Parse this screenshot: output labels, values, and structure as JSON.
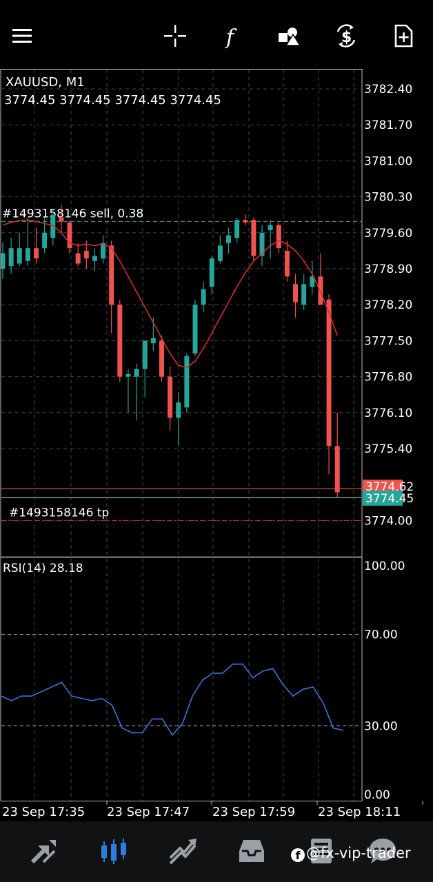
{
  "toolbar": {
    "icons": [
      "menu-icon",
      "crosshair-icon",
      "indicators-icon",
      "objects-icon",
      "trade-icon",
      "new-order-icon"
    ]
  },
  "chart": {
    "symbol_label": "XAUUSD, M1",
    "ohlc_label": "3774.45 3774.45 3774.45 3774.45",
    "order_label": "#1493158146 sell, 0.38",
    "tp_label": "#1493158146 tp",
    "bid_price": "3774.45",
    "ask_price": "3774.62",
    "rsi_label": "RSI(14) 28.18",
    "colors": {
      "bull": "#26a69a",
      "bear": "#ef5350",
      "ma": "#d32f2f",
      "rsi": "#3f74d8",
      "grid": "#3a4a4a"
    }
  },
  "chart_data": [
    {
      "type": "candlestick",
      "title": "XAUUSD, M1",
      "y_ticks": [
        "3782.40",
        "3781.70",
        "3781.00",
        "3780.30",
        "3779.60",
        "3778.90",
        "3778.20",
        "3777.50",
        "3776.80",
        "3776.10",
        "3775.40",
        "3774.00"
      ],
      "ylim": [
        3773.7,
        3782.8
      ],
      "x_ticks": [
        "23 Sep 17:35",
        "23 Sep 17:47",
        "23 Sep 17:59",
        "23 Sep 18:11"
      ],
      "order_line_price": 3779.82,
      "tp_line_price": 3774.0,
      "ask_line_price": 3774.62,
      "bid_line_price": 3774.45,
      "candles": [
        {
          "o": 3778.9,
          "h": 3779.4,
          "l": 3778.7,
          "c": 3779.2
        },
        {
          "o": 3778.95,
          "h": 3779.5,
          "l": 3778.8,
          "c": 3779.3
        },
        {
          "o": 3779.0,
          "h": 3779.6,
          "l": 3778.95,
          "c": 3779.3
        },
        {
          "o": 3779.05,
          "h": 3779.9,
          "l": 3778.95,
          "c": 3779.3
        },
        {
          "o": 3779.3,
          "h": 3779.7,
          "l": 3779.0,
          "c": 3779.1
        },
        {
          "o": 3779.3,
          "h": 3779.9,
          "l": 3779.2,
          "c": 3779.6
        },
        {
          "o": 3779.5,
          "h": 3780.05,
          "l": 3779.35,
          "c": 3779.95
        },
        {
          "o": 3779.9,
          "h": 3780.15,
          "l": 3779.6,
          "c": 3779.82
        },
        {
          "o": 3779.8,
          "h": 3779.85,
          "l": 3779.2,
          "c": 3779.3
        },
        {
          "o": 3779.2,
          "h": 3779.4,
          "l": 3778.95,
          "c": 3779.0
        },
        {
          "o": 3779.25,
          "h": 3779.45,
          "l": 3778.9,
          "c": 3779.1
        },
        {
          "o": 3779.05,
          "h": 3779.3,
          "l": 3778.85,
          "c": 3779.15
        },
        {
          "o": 3779.1,
          "h": 3779.55,
          "l": 3779.0,
          "c": 3779.4
        },
        {
          "o": 3779.35,
          "h": 3779.45,
          "l": 3777.65,
          "c": 3778.2
        },
        {
          "o": 3778.2,
          "h": 3778.3,
          "l": 3776.7,
          "c": 3776.8
        },
        {
          "o": 3776.8,
          "h": 3776.95,
          "l": 3776.1,
          "c": 3776.85
        },
        {
          "o": 3776.8,
          "h": 3777.05,
          "l": 3775.95,
          "c": 3776.95
        },
        {
          "o": 3776.95,
          "h": 3777.5,
          "l": 3776.4,
          "c": 3777.5
        },
        {
          "o": 3777.45,
          "h": 3777.95,
          "l": 3777.3,
          "c": 3777.55
        },
        {
          "o": 3777.5,
          "h": 3777.6,
          "l": 3776.7,
          "c": 3776.8
        },
        {
          "o": 3776.8,
          "h": 3777.0,
          "l": 3775.75,
          "c": 3776.0
        },
        {
          "o": 3776.0,
          "h": 3776.5,
          "l": 3775.45,
          "c": 3776.3
        },
        {
          "o": 3776.2,
          "h": 3777.25,
          "l": 3776.1,
          "c": 3777.2
        },
        {
          "o": 3777.25,
          "h": 3778.3,
          "l": 3777.2,
          "c": 3778.2
        },
        {
          "o": 3778.2,
          "h": 3778.65,
          "l": 3778.05,
          "c": 3778.5
        },
        {
          "o": 3778.55,
          "h": 3779.15,
          "l": 3778.4,
          "c": 3779.1
        },
        {
          "o": 3779.05,
          "h": 3779.55,
          "l": 3779.0,
          "c": 3779.35
        },
        {
          "o": 3779.4,
          "h": 3779.7,
          "l": 3779.2,
          "c": 3779.55
        },
        {
          "o": 3779.5,
          "h": 3779.9,
          "l": 3779.4,
          "c": 3779.85
        },
        {
          "o": 3779.85,
          "h": 3779.95,
          "l": 3779.75,
          "c": 3779.8
        },
        {
          "o": 3779.85,
          "h": 3779.9,
          "l": 3779.05,
          "c": 3779.15
        },
        {
          "o": 3779.15,
          "h": 3779.75,
          "l": 3778.95,
          "c": 3779.6
        },
        {
          "o": 3779.65,
          "h": 3779.85,
          "l": 3779.1,
          "c": 3779.75
        },
        {
          "o": 3779.75,
          "h": 3779.8,
          "l": 3779.2,
          "c": 3779.3
        },
        {
          "o": 3779.25,
          "h": 3779.45,
          "l": 3778.65,
          "c": 3778.75
        },
        {
          "o": 3778.6,
          "h": 3778.8,
          "l": 3777.95,
          "c": 3778.25
        },
        {
          "o": 3778.2,
          "h": 3778.8,
          "l": 3778.1,
          "c": 3778.6
        },
        {
          "o": 3778.55,
          "h": 3779.05,
          "l": 3778.4,
          "c": 3778.75
        },
        {
          "o": 3778.75,
          "h": 3779.2,
          "l": 3778.2,
          "c": 3778.2
        },
        {
          "o": 3778.3,
          "h": 3778.4,
          "l": 3774.9,
          "c": 3775.45
        },
        {
          "o": 3775.45,
          "h": 3776.1,
          "l": 3774.45,
          "c": 3774.55
        }
      ],
      "moving_average": [
        3779.75,
        3779.8,
        3779.84,
        3779.85,
        3779.82,
        3779.78,
        3779.74,
        3779.6,
        3779.4,
        3779.35,
        3779.38,
        3779.35,
        3779.38,
        3779.3,
        3779.05,
        3778.75,
        3778.45,
        3778.15,
        3777.85,
        3777.55,
        3777.25,
        3777.02,
        3776.98,
        3777.1,
        3777.35,
        3777.65,
        3777.95,
        3778.25,
        3778.55,
        3778.82,
        3779.05,
        3779.2,
        3779.35,
        3779.45,
        3779.38,
        3779.25,
        3779.05,
        3778.8,
        3778.45,
        3778.05,
        3777.6
      ]
    },
    {
      "type": "line",
      "title": "RSI(14) 28.18",
      "y_ticks": [
        "100.00",
        "70.00",
        "30.00",
        "0.00"
      ],
      "ylim": [
        0,
        100
      ],
      "levels": [
        70,
        30
      ],
      "series": [
        {
          "values": [
            43,
            41,
            43,
            43,
            45,
            47,
            49,
            43,
            42,
            41,
            42,
            39,
            29,
            27,
            27,
            33,
            33,
            26,
            31,
            43,
            50,
            53,
            53,
            57,
            57,
            51,
            54,
            55,
            48,
            43,
            46,
            47,
            40,
            29,
            28
          ]
        }
      ]
    }
  ],
  "bottom_nav": {
    "icons": [
      "quotes-icon",
      "chart-icon",
      "trade-icon",
      "history-icon",
      "news-icon",
      "messages-icon"
    ],
    "active": "chart-icon"
  },
  "watermark": {
    "text": "@fx-vip-trader",
    "logo": "f"
  }
}
